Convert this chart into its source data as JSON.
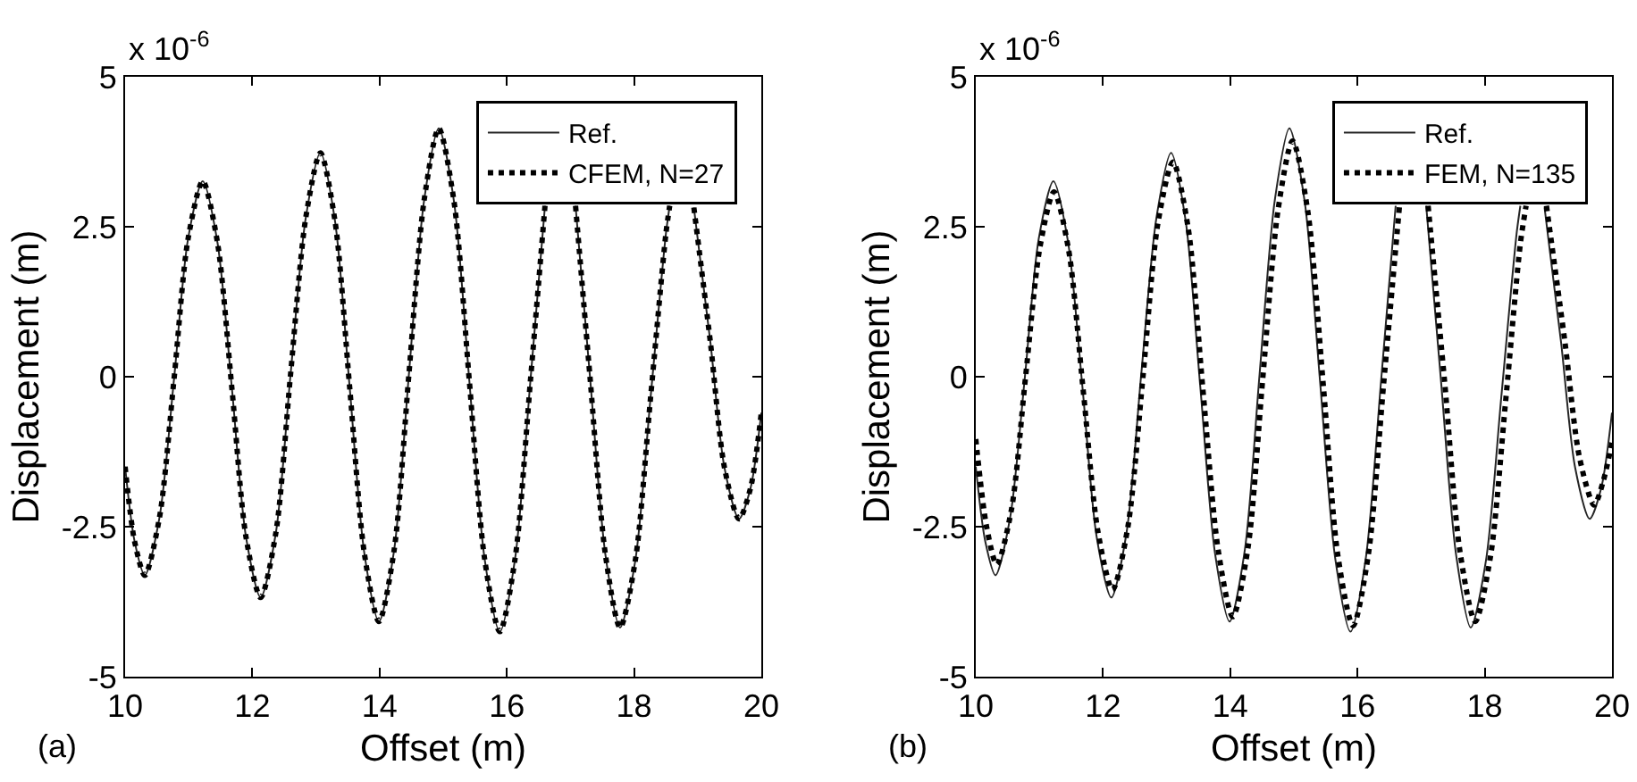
{
  "chart_data": [
    {
      "type": "line",
      "annotations": [
        "x 10$^{-6}$",
        "(a)"
      ],
      "xlabel": "Offset (m)",
      "ylabel": "Displacement (m)",
      "xlim": [
        10,
        20
      ],
      "ylim": [
        -5,
        5
      ],
      "xticks": [
        10,
        12,
        14,
        16,
        18,
        20
      ],
      "yticks": [
        -5,
        -2.5,
        0,
        2.5,
        5
      ],
      "legend": "top right",
      "series": [
        {
          "name": "Ref.",
          "color": "#262626",
          "line_style": "solid",
          "x": [
            10.0,
            10.15,
            10.31,
            10.54,
            10.77,
            10.99,
            11.22,
            11.45,
            11.68,
            11.9,
            12.13,
            12.37,
            12.6,
            12.84,
            13.07,
            13.3,
            13.53,
            13.76,
            13.99,
            14.23,
            14.46,
            14.7,
            14.93,
            15.17,
            15.41,
            15.65,
            15.89,
            16.13,
            16.37,
            16.6,
            16.84,
            17.08,
            17.31,
            17.55,
            17.78,
            18.02,
            18.26,
            18.5,
            18.56,
            18.74,
            18.94,
            19.2,
            19.42,
            19.65,
            19.83,
            20.0
          ],
          "values": [
            -1.5,
            -2.75,
            -3.31,
            -2.35,
            -0.03,
            2.3,
            3.26,
            2.25,
            -0.21,
            -2.67,
            -3.68,
            -2.6,
            0.03,
            2.65,
            3.73,
            2.59,
            -0.18,
            -2.94,
            -4.08,
            -2.88,
            0.03,
            2.94,
            4.14,
            2.92,
            -0.06,
            -3.03,
            -4.25,
            -3.03,
            -0.08,
            2.85,
            null,
            2.85,
            -0.04,
            -2.97,
            -4.18,
            -3.06,
            -0.34,
            2.38,
            2.85,
            null,
            2.82,
            0.57,
            -1.51,
            -2.37,
            -1.86,
            -0.6
          ]
        },
        {
          "name": "CFEM, N=27",
          "color": "#000000",
          "line_style": "dotted",
          "x": [
            10.0,
            10.15,
            10.31,
            10.54,
            10.77,
            10.99,
            11.22,
            11.45,
            11.68,
            11.9,
            12.13,
            12.37,
            12.6,
            12.84,
            13.07,
            13.3,
            13.53,
            13.76,
            13.99,
            14.23,
            14.46,
            14.7,
            14.93,
            15.17,
            15.41,
            15.65,
            15.89,
            16.13,
            16.37,
            16.6,
            16.84,
            17.08,
            17.31,
            17.55,
            17.78,
            18.02,
            18.26,
            18.5,
            18.56,
            18.74,
            18.94,
            19.2,
            19.42,
            19.65,
            19.83,
            20.0
          ],
          "values": [
            -1.5,
            -2.75,
            -3.31,
            -2.35,
            -0.03,
            2.3,
            3.26,
            2.25,
            -0.21,
            -2.67,
            -3.68,
            -2.6,
            0.03,
            2.65,
            3.73,
            2.59,
            -0.18,
            -2.94,
            -4.08,
            -2.88,
            0.03,
            2.94,
            4.14,
            2.92,
            -0.06,
            -3.03,
            -4.25,
            -3.03,
            -0.08,
            2.85,
            null,
            2.85,
            -0.04,
            -2.97,
            -4.18,
            -3.06,
            -0.34,
            2.38,
            2.85,
            null,
            2.82,
            0.57,
            -1.51,
            -2.37,
            -1.86,
            -0.6
          ]
        }
      ]
    },
    {
      "type": "line",
      "annotations": [
        "x 10$^{-6}$",
        "(b)"
      ],
      "xlabel": "Offset (m)",
      "ylabel": "Displacement (m)",
      "xlim": [
        10,
        20
      ],
      "ylim": [
        -5,
        5
      ],
      "xticks": [
        10,
        12,
        14,
        16,
        18,
        20
      ],
      "yticks": [
        -5,
        -2.5,
        0,
        2.5,
        5
      ],
      "legend": "top right",
      "series": [
        {
          "name": "Ref.",
          "color": "#262626",
          "line_style": "solid",
          "x": [
            10.0,
            10.15,
            10.31,
            10.54,
            10.77,
            10.99,
            11.22,
            11.45,
            11.68,
            11.9,
            12.13,
            12.37,
            12.6,
            12.84,
            13.07,
            13.3,
            13.53,
            13.76,
            13.99,
            14.23,
            14.46,
            14.7,
            14.93,
            15.17,
            15.41,
            15.65,
            15.89,
            16.13,
            16.37,
            16.6,
            16.84,
            17.08,
            17.31,
            17.55,
            17.78,
            18.02,
            18.26,
            18.5,
            18.56,
            18.74,
            18.94,
            19.2,
            19.42,
            19.65,
            19.83,
            20.0
          ],
          "values": [
            -1.5,
            -2.75,
            -3.31,
            -2.35,
            -0.03,
            2.3,
            3.26,
            2.25,
            -0.21,
            -2.67,
            -3.68,
            -2.6,
            0.03,
            2.65,
            3.73,
            2.59,
            -0.18,
            -2.94,
            -4.08,
            -2.88,
            0.03,
            2.94,
            4.14,
            2.92,
            -0.06,
            -3.03,
            -4.25,
            -3.03,
            -0.08,
            2.85,
            null,
            2.85,
            -0.04,
            -2.97,
            -4.18,
            -3.06,
            -0.34,
            2.38,
            2.85,
            null,
            2.82,
            0.57,
            -1.51,
            -2.37,
            -1.86,
            -0.6
          ]
        },
        {
          "name": "FEM, N=135",
          "color": "#000000",
          "line_style": "dotted",
          "x": [
            10.0,
            10.17,
            10.33,
            10.56,
            10.78,
            11.01,
            11.23,
            11.46,
            11.69,
            11.92,
            12.15,
            12.39,
            12.63,
            12.86,
            13.1,
            13.34,
            13.57,
            13.81,
            14.04,
            14.28,
            14.51,
            14.75,
            14.98,
            15.22,
            15.46,
            15.69,
            15.93,
            16.17,
            16.41,
            16.66,
            16.89,
            17.11,
            17.37,
            17.61,
            17.85,
            18.09,
            18.33,
            18.56,
            18.65,
            18.8,
            18.97,
            19.26,
            19.49,
            19.72,
            19.86,
            20.0
          ],
          "values": [
            -1.04,
            -2.5,
            -3.13,
            -2.22,
            -0.03,
            2.17,
            3.08,
            2.11,
            -0.24,
            -2.58,
            -3.55,
            -2.51,
            0.02,
            2.54,
            3.58,
            2.47,
            -0.21,
            -2.89,
            -4.0,
            -2.84,
            -0.04,
            2.77,
            3.93,
            2.75,
            -0.11,
            -2.97,
            -4.15,
            -2.97,
            -0.13,
            2.85,
            null,
            2.85,
            -0.09,
            -2.91,
            -4.08,
            -3.0,
            -0.39,
            2.22,
            2.85,
            null,
            2.85,
            0.58,
            -1.35,
            -2.14,
            -1.75,
            -1.1
          ]
        }
      ]
    }
  ]
}
